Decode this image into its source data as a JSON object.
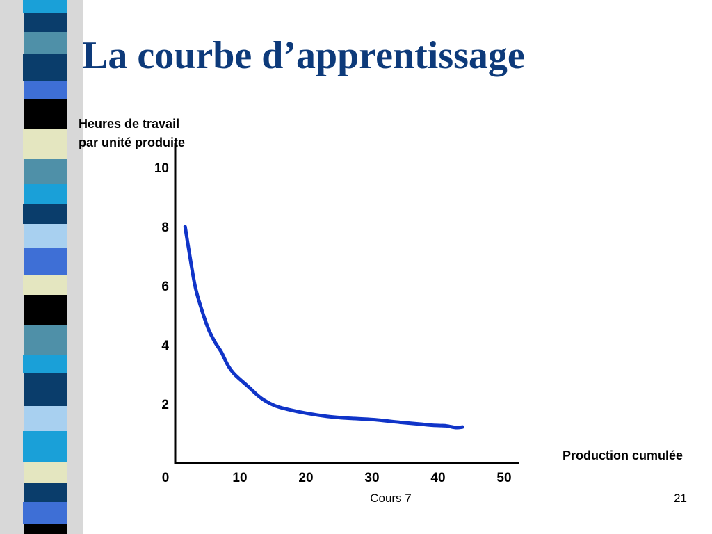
{
  "slide": {
    "title": "La courbe d’apprentissage",
    "footer_text": "Cours 7",
    "page_number": "21"
  },
  "colors": {
    "title": "#0d3a7a",
    "curve": "#1034c8",
    "axis": "#000000",
    "strip_palette": [
      "#0a3d6b",
      "#3e6fd6",
      "#5aa0c8",
      "#4f90a8",
      "#e4e6c0",
      "#000000",
      "#a8d0f0",
      "#1aa0d8"
    ]
  },
  "chart_data": {
    "type": "line",
    "title": "",
    "ylabel_lines": [
      "Heures de travail",
      "par unité produite"
    ],
    "xlabel": "Production cumulée",
    "x_ticks": [
      0,
      10,
      20,
      30,
      40,
      50
    ],
    "y_ticks": [
      2,
      4,
      6,
      8,
      10
    ],
    "xlim": [
      0,
      52
    ],
    "ylim": [
      0,
      12
    ],
    "grid": false,
    "legend": "none",
    "series": [
      {
        "x": [
          1.5,
          2,
          3,
          4,
          5,
          6,
          7,
          8,
          9,
          11,
          13,
          15,
          17,
          20,
          23,
          26,
          30,
          34,
          37,
          39,
          41,
          42.5,
          43.5
        ],
        "y": [
          8.0,
          7.3,
          6.0,
          5.2,
          4.55,
          4.1,
          3.75,
          3.3,
          3.0,
          2.6,
          2.2,
          1.95,
          1.82,
          1.68,
          1.58,
          1.52,
          1.47,
          1.38,
          1.32,
          1.28,
          1.26,
          1.2,
          1.22
        ]
      }
    ]
  }
}
